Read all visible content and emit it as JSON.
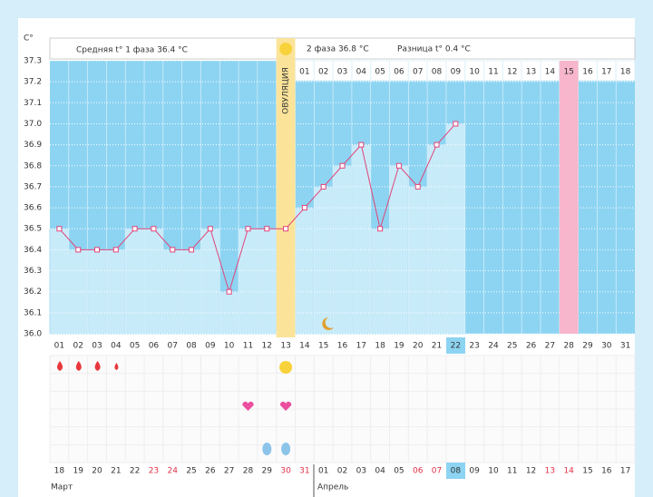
{
  "chart_data": {
    "type": "line",
    "y_unit": "C°",
    "header": {
      "phase1": "Средняя t° 1 фаза 36.4 °C",
      "phase2": "2 фаза 36.8 °C",
      "difference": "Разница t° 0.4 °C",
      "ovulation": "ОВУЛЯЦИЯ"
    },
    "categories": [
      "01",
      "02",
      "03",
      "04",
      "05",
      "06",
      "07",
      "08",
      "09",
      "10",
      "11",
      "12",
      "13",
      "14",
      "15",
      "16",
      "17",
      "18",
      "19",
      "20",
      "21",
      "22",
      "23",
      "24",
      "25",
      "26",
      "27",
      "28",
      "29",
      "30",
      "31"
    ],
    "values": [
      36.5,
      36.4,
      36.4,
      36.4,
      36.5,
      36.5,
      36.4,
      36.4,
      36.5,
      36.2,
      36.5,
      36.5,
      36.5,
      36.6,
      36.7,
      36.8,
      36.9,
      36.5,
      36.8,
      36.7,
      36.9,
      37.0,
      null,
      null,
      null,
      null,
      null,
      null,
      null,
      null,
      null
    ],
    "ylim": [
      36.0,
      37.3
    ],
    "yticks": [
      {
        "value": 36,
        "label": "36.0"
      },
      36.1,
      36.2,
      36.3,
      36.4,
      36.5,
      36.6,
      36.7,
      36.8,
      36.9,
      {
        "value": 37,
        "label": "37.0"
      },
      37.1,
      37.2,
      37.3
    ],
    "grid": true,
    "bar_color": "#c8ebfa",
    "background_color": "#8dd4f2",
    "line_color": "#e0457a",
    "phase2_days": [
      "01",
      "02",
      "03",
      "04",
      "05",
      "06",
      "07",
      "08",
      "09",
      "10",
      "11",
      "12",
      "13",
      "14",
      "15",
      "16",
      "17",
      "18"
    ],
    "dates": [
      {
        "label": "18",
        "color": "#333"
      },
      {
        "label": "19",
        "color": "#333"
      },
      {
        "label": "20",
        "color": "#333"
      },
      {
        "label": "21",
        "color": "#333"
      },
      {
        "label": "22",
        "color": "#333"
      },
      {
        "label": "23",
        "color": "#e0304a"
      },
      {
        "label": "24",
        "color": "#e0304a"
      },
      {
        "label": "25",
        "color": "#333"
      },
      {
        "label": "26",
        "color": "#333"
      },
      {
        "label": "27",
        "color": "#333"
      },
      {
        "label": "28",
        "color": "#333"
      },
      {
        "label": "29",
        "color": "#333"
      },
      {
        "label": "30",
        "color": "#e0304a"
      },
      {
        "label": "31",
        "color": "#e0304a"
      },
      {
        "label": "01",
        "color": "#333"
      },
      {
        "label": "02",
        "color": "#333"
      },
      {
        "label": "03",
        "color": "#333"
      },
      {
        "label": "04",
        "color": "#333"
      },
      {
        "label": "05",
        "color": "#333"
      },
      {
        "label": "06",
        "color": "#e0304a"
      },
      {
        "label": "07",
        "color": "#e0304a"
      },
      {
        "label": "08",
        "color": "#333"
      },
      {
        "label": "09",
        "color": "#333"
      },
      {
        "label": "10",
        "color": "#333"
      },
      {
        "label": "11",
        "color": "#333"
      },
      {
        "label": "12",
        "color": "#333"
      },
      {
        "label": "13",
        "color": "#e0304a"
      },
      {
        "label": "14",
        "color": "#e0304a"
      },
      {
        "label": "15",
        "color": "#333"
      },
      {
        "label": "16",
        "color": "#333"
      },
      {
        "label": "17",
        "color": "#333"
      }
    ],
    "months": [
      "Март",
      "Апрель"
    ]
  }
}
